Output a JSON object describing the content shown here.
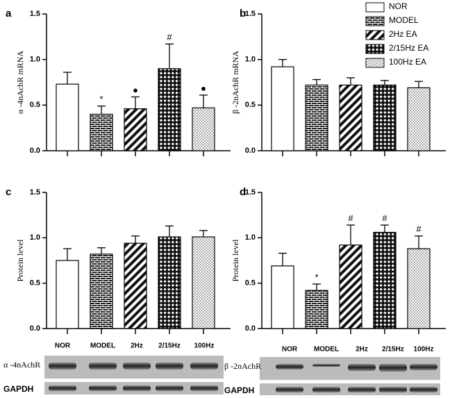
{
  "chart_data": [
    {
      "type": "bar",
      "panel": "a",
      "ylabel": "α -4nAchR mRNA",
      "categories": [
        null,
        null,
        null,
        null,
        null
      ],
      "values": [
        0.73,
        0.4,
        0.46,
        0.9,
        0.47
      ],
      "errors": [
        0.13,
        0.09,
        0.13,
        0.27,
        0.14
      ],
      "annotations": [
        null,
        "*",
        "●",
        "#",
        "●"
      ],
      "ylim": [
        0,
        1.5
      ],
      "yticks": [
        {
          "value": 0,
          "label": "0.0"
        },
        {
          "value": 0.5,
          "label": "0.5"
        },
        {
          "value": 1,
          "label": "1.0"
        },
        {
          "value": 1.5,
          "label": "1.5"
        }
      ]
    },
    {
      "type": "bar",
      "panel": "b",
      "ylabel": "β -2nAchR mRNA",
      "categories": [
        null,
        null,
        null,
        null,
        null
      ],
      "values": [
        0.92,
        0.72,
        0.72,
        0.72,
        0.69
      ],
      "errors": [
        0.08,
        0.06,
        0.08,
        0.05,
        0.07
      ],
      "annotations": [
        null,
        null,
        null,
        null,
        null
      ],
      "ylim": [
        0,
        1.5
      ],
      "yticks": [
        {
          "value": 0,
          "label": "0.0"
        },
        {
          "value": 0.5,
          "label": "0.5"
        },
        {
          "value": 1,
          "label": "1.0"
        },
        {
          "value": 1.5,
          "label": "1.5"
        }
      ],
      "legend": [
        "NOR",
        "MODEL",
        "2Hz EA",
        "2/15Hz EA",
        "100Hz EA"
      ]
    },
    {
      "type": "bar",
      "panel": "c",
      "ylabel": "Protein level",
      "categories": [
        null,
        null,
        null,
        null,
        null
      ],
      "values": [
        0.75,
        0.82,
        0.94,
        1.01,
        1.01
      ],
      "errors": [
        0.13,
        0.07,
        0.08,
        0.12,
        0.07
      ],
      "annotations": [
        null,
        null,
        null,
        null,
        null
      ],
      "ylim": [
        0,
        1.5
      ],
      "yticks": [
        {
          "value": 0,
          "label": "0.0"
        },
        {
          "value": 0.5,
          "label": "0.5"
        },
        {
          "value": 1,
          "label": "1.0"
        },
        {
          "value": 1.5,
          "label": "1.5"
        }
      ]
    },
    {
      "type": "bar",
      "panel": "d",
      "ylabel": "Protein level",
      "categories": [
        null,
        null,
        null,
        null,
        null
      ],
      "values": [
        0.69,
        0.42,
        0.92,
        1.06,
        0.88
      ],
      "errors": [
        0.14,
        0.07,
        0.22,
        0.08,
        0.14
      ],
      "annotations": [
        null,
        "*",
        "#",
        "#",
        "#"
      ],
      "ylim": [
        0,
        1.5
      ],
      "yticks": [
        {
          "value": 0,
          "label": "0.0"
        },
        {
          "value": 0.5,
          "label": "0.5"
        },
        {
          "value": 1,
          "label": "1.0"
        },
        {
          "value": 1.5,
          "label": "1.5"
        }
      ]
    }
  ],
  "blots": [
    {
      "lanes": [
        "NOR",
        "MODEL",
        "2Hz",
        "2/15Hz",
        "100Hz"
      ],
      "target": "α -4nAchR",
      "control": "GAPDH"
    },
    {
      "lanes": [
        "NOR",
        "MODEL",
        "2Hz",
        "2/15Hz",
        "100Hz"
      ],
      "target": "β -2nAchR",
      "control": "GAPDH"
    }
  ]
}
